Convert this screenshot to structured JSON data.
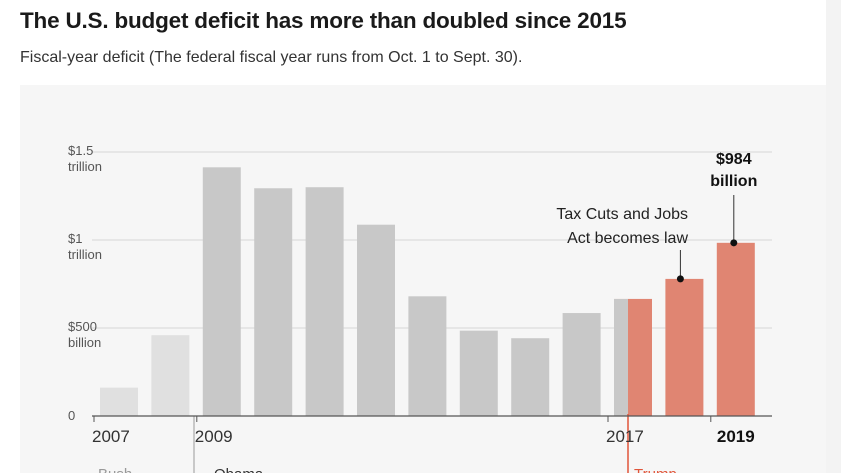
{
  "header": {
    "title": "The U.S. budget deficit has more than doubled since 2015",
    "subtitle": "Fiscal-year deficit (The federal fiscal year runs from Oct. 1 to Sept. 30)."
  },
  "chart_data": {
    "type": "bar",
    "categories": [
      "2007",
      "2008",
      "2009",
      "2010",
      "2011",
      "2012",
      "2013",
      "2014",
      "2015",
      "2016",
      "2017",
      "2018",
      "2019"
    ],
    "values": [
      161,
      459,
      1413,
      1294,
      1300,
      1087,
      680,
      485,
      442,
      585,
      665,
      779,
      984
    ],
    "value_unit": "billion $",
    "ylim": [
      0,
      1500
    ],
    "yticks": [
      {
        "value": 0,
        "line1": "0",
        "line2": ""
      },
      {
        "value": 500,
        "line1": "$500",
        "line2": "billion"
      },
      {
        "value": 1000,
        "line1": "$1",
        "line2": "trillion"
      },
      {
        "value": 1500,
        "line1": "$1.5",
        "line2": "trillion"
      }
    ],
    "xticks": [
      {
        "category": "2007",
        "label": "2007",
        "bold": false
      },
      {
        "category": "2009",
        "label": "2009",
        "bold": false
      },
      {
        "category": "2017",
        "label": "2017",
        "bold": false
      },
      {
        "category": "2019",
        "label": "2019",
        "bold": true
      }
    ],
    "eras": [
      {
        "name": "Bush",
        "from": "2007",
        "to": "2008",
        "bar_color": "#e0e0e0",
        "label_color": "#999999"
      },
      {
        "name": "Obama",
        "from": "2009",
        "to": "2017",
        "bar_color": "#c8c8c8",
        "label_color": "#333333"
      },
      {
        "name": "Trump",
        "from": "2017",
        "to": "2019",
        "bar_color": "#e08572",
        "label_color": "#e0553a"
      }
    ],
    "annotations": [
      {
        "category": "2018",
        "line1": "Tax Cuts and Jobs",
        "line2": "Act becomes law"
      }
    ],
    "callout": {
      "category": "2019",
      "line1": "$984",
      "line2": "billion"
    },
    "grid": true,
    "legend": "none"
  }
}
